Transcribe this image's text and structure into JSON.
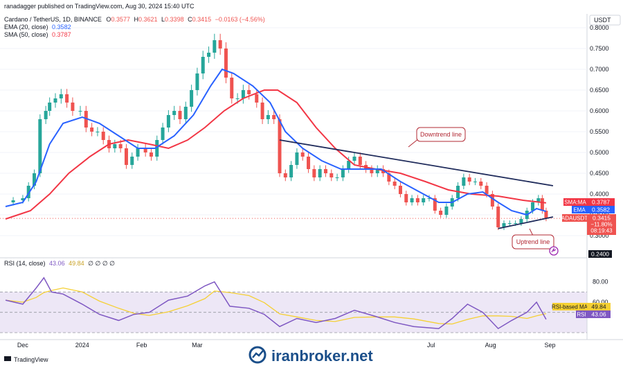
{
  "header": {
    "published_line": "ranadagger published on TradingView.com, Aug 30, 2024 15:40 UTC",
    "symbol_line_prefix": "Cardano / TetherUS, 1D, BINANCE",
    "ohlc": {
      "O": "0.3577",
      "H": "0.3621",
      "L": "0.3398",
      "C": "0.3415",
      "chg": "−0.0163 (−4.56%)"
    },
    "ema_line_label": "EMA (20, close)",
    "ema_line_value": "0.3582",
    "sma_line_label": "SMA (50, close)",
    "sma_line_value": "0.3787"
  },
  "currency": "USDT",
  "price_axis": {
    "ticks": [
      "0.8000",
      "0.7500",
      "0.7000",
      "0.6500",
      "0.6000",
      "0.5500",
      "0.5000",
      "0.4500",
      "0.4000",
      "0.3500",
      "0.3000"
    ],
    "bottom_tag": "0.2400"
  },
  "price_tags": {
    "sma": {
      "label": "SMA:MA",
      "value": "0.3787"
    },
    "ema": {
      "label": "EMA",
      "value": "0.3582"
    },
    "last": {
      "label": "ADAUSDT",
      "value": "0.3415",
      "change": "−11.80%",
      "countdown": "08:19:43"
    }
  },
  "annotations": {
    "downtrend": "Downtrend line",
    "uptrend": "Uptrend line"
  },
  "rsi": {
    "label": "RSI (14, close)",
    "value": "43.06",
    "ma_value": "49.84",
    "ma_tag_label": "RSI-based MA",
    "tag_label": "RSI",
    "extra": "∅ ∅ ∅ ∅",
    "ticks": [
      "80.00",
      "60.00"
    ]
  },
  "time_axis": [
    "Dec",
    "2024",
    "Feb",
    "Mar",
    "Jul",
    "Aug",
    "Sep"
  ],
  "footer": {
    "brand": "TradingView",
    "watermark": "iranbroker.net"
  },
  "colors": {
    "up": "#26a69a",
    "down": "#ef5350",
    "ema": "#2962ff",
    "sma": "#f23645",
    "trend": "#1e2a5a",
    "rsi": "#7e57c2",
    "rsi_ma": "#f5d033"
  },
  "chart_data": {
    "type": "candlestick",
    "symbol": "ADAUSDT",
    "interval": "1D",
    "ylim": [
      0.24,
      0.81
    ],
    "x_range": [
      "2023-11-22",
      "2024-09-03"
    ],
    "ohlc_series": [
      {
        "date": "2023-11-22",
        "close": 0.38
      },
      {
        "date": "2023-11-26",
        "close": 0.385
      },
      {
        "date": "2023-12-01",
        "close": 0.39
      },
      {
        "date": "2023-12-04",
        "close": 0.42
      },
      {
        "date": "2023-12-07",
        "close": 0.45
      },
      {
        "date": "2023-12-10",
        "close": 0.58
      },
      {
        "date": "2023-12-13",
        "close": 0.6
      },
      {
        "date": "2023-12-15",
        "close": 0.62
      },
      {
        "date": "2023-12-18",
        "close": 0.63
      },
      {
        "date": "2023-12-21",
        "close": 0.64
      },
      {
        "date": "2023-12-24",
        "close": 0.62
      },
      {
        "date": "2023-12-27",
        "close": 0.6
      },
      {
        "date": "2023-12-31",
        "close": 0.6
      },
      {
        "date": "2024-01-03",
        "close": 0.56
      },
      {
        "date": "2024-01-06",
        "close": 0.55
      },
      {
        "date": "2024-01-09",
        "close": 0.55
      },
      {
        "date": "2024-01-12",
        "close": 0.53
      },
      {
        "date": "2024-01-15",
        "close": 0.51
      },
      {
        "date": "2024-01-18",
        "close": 0.52
      },
      {
        "date": "2024-01-21",
        "close": 0.51
      },
      {
        "date": "2024-01-24",
        "close": 0.47
      },
      {
        "date": "2024-01-27",
        "close": 0.49
      },
      {
        "date": "2024-01-30",
        "close": 0.51
      },
      {
        "date": "2024-02-03",
        "close": 0.5
      },
      {
        "date": "2024-02-06",
        "close": 0.49
      },
      {
        "date": "2024-02-09",
        "close": 0.53
      },
      {
        "date": "2024-02-12",
        "close": 0.56
      },
      {
        "date": "2024-02-15",
        "close": 0.59
      },
      {
        "date": "2024-02-18",
        "close": 0.6
      },
      {
        "date": "2024-02-21",
        "close": 0.58
      },
      {
        "date": "2024-02-24",
        "close": 0.61
      },
      {
        "date": "2024-02-27",
        "close": 0.65
      },
      {
        "date": "2024-03-01",
        "close": 0.69
      },
      {
        "date": "2024-03-04",
        "close": 0.73
      },
      {
        "date": "2024-03-07",
        "close": 0.74
      },
      {
        "date": "2024-03-10",
        "close": 0.77
      },
      {
        "date": "2024-03-13",
        "close": 0.75
      },
      {
        "date": "2024-03-16",
        "close": 0.68
      },
      {
        "date": "2024-03-19",
        "close": 0.63
      },
      {
        "date": "2024-03-22",
        "close": 0.63
      },
      {
        "date": "2024-03-25",
        "close": 0.65
      },
      {
        "date": "2024-03-28",
        "close": 0.64
      },
      {
        "date": "2024-04-01",
        "close": 0.62
      },
      {
        "date": "2024-04-04",
        "close": 0.58
      },
      {
        "date": "2024-04-07",
        "close": 0.59
      },
      {
        "date": "2024-04-10",
        "close": 0.58
      },
      {
        "date": "2024-04-13",
        "close": 0.45
      },
      {
        "date": "2024-04-16",
        "close": 0.44
      },
      {
        "date": "2024-04-19",
        "close": 0.47
      },
      {
        "date": "2024-04-22",
        "close": 0.5
      },
      {
        "date": "2024-04-25",
        "close": 0.49
      },
      {
        "date": "2024-04-28",
        "close": 0.46
      },
      {
        "date": "2024-05-01",
        "close": 0.44
      },
      {
        "date": "2024-05-04",
        "close": 0.46
      },
      {
        "date": "2024-05-07",
        "close": 0.45
      },
      {
        "date": "2024-05-10",
        "close": 0.44
      },
      {
        "date": "2024-05-13",
        "close": 0.44
      },
      {
        "date": "2024-05-16",
        "close": 0.46
      },
      {
        "date": "2024-05-19",
        "close": 0.48
      },
      {
        "date": "2024-05-22",
        "close": 0.49
      },
      {
        "date": "2024-05-25",
        "close": 0.47
      },
      {
        "date": "2024-05-28",
        "close": 0.46
      },
      {
        "date": "2024-05-31",
        "close": 0.45
      },
      {
        "date": "2024-06-03",
        "close": 0.46
      },
      {
        "date": "2024-06-06",
        "close": 0.45
      },
      {
        "date": "2024-06-09",
        "close": 0.43
      },
      {
        "date": "2024-06-12",
        "close": 0.42
      },
      {
        "date": "2024-06-15",
        "close": 0.4
      },
      {
        "date": "2024-06-18",
        "close": 0.38
      },
      {
        "date": "2024-06-21",
        "close": 0.39
      },
      {
        "date": "2024-06-24",
        "close": 0.38
      },
      {
        "date": "2024-06-27",
        "close": 0.39
      },
      {
        "date": "2024-06-30",
        "close": 0.39
      },
      {
        "date": "2024-07-03",
        "close": 0.36
      },
      {
        "date": "2024-07-06",
        "close": 0.35
      },
      {
        "date": "2024-07-09",
        "close": 0.37
      },
      {
        "date": "2024-07-12",
        "close": 0.39
      },
      {
        "date": "2024-07-15",
        "close": 0.42
      },
      {
        "date": "2024-07-18",
        "close": 0.44
      },
      {
        "date": "2024-07-21",
        "close": 0.43
      },
      {
        "date": "2024-07-24",
        "close": 0.43
      },
      {
        "date": "2024-07-27",
        "close": 0.42
      },
      {
        "date": "2024-07-30",
        "close": 0.4
      },
      {
        "date": "2024-08-02",
        "close": 0.37
      },
      {
        "date": "2024-08-05",
        "close": 0.32
      },
      {
        "date": "2024-08-08",
        "close": 0.33
      },
      {
        "date": "2024-08-11",
        "close": 0.33
      },
      {
        "date": "2024-08-14",
        "close": 0.33
      },
      {
        "date": "2024-08-17",
        "close": 0.34
      },
      {
        "date": "2024-08-20",
        "close": 0.36
      },
      {
        "date": "2024-08-23",
        "close": 0.38
      },
      {
        "date": "2024-08-26",
        "close": 0.39
      },
      {
        "date": "2024-08-28",
        "close": 0.36
      },
      {
        "date": "2024-08-30",
        "close": 0.3415
      }
    ],
    "ema20": [
      {
        "date": "2023-11-22",
        "value": 0.37
      },
      {
        "date": "2023-12-01",
        "value": 0.38
      },
      {
        "date": "2023-12-08",
        "value": 0.43
      },
      {
        "date": "2023-12-15",
        "value": 0.52
      },
      {
        "date": "2023-12-22",
        "value": 0.57
      },
      {
        "date": "2024-01-01",
        "value": 0.585
      },
      {
        "date": "2024-01-10",
        "value": 0.57
      },
      {
        "date": "2024-01-20",
        "value": 0.54
      },
      {
        "date": "2024-01-30",
        "value": 0.51
      },
      {
        "date": "2024-02-08",
        "value": 0.51
      },
      {
        "date": "2024-02-18",
        "value": 0.54
      },
      {
        "date": "2024-02-28",
        "value": 0.59
      },
      {
        "date": "2024-03-08",
        "value": 0.66
      },
      {
        "date": "2024-03-14",
        "value": 0.7
      },
      {
        "date": "2024-03-20",
        "value": 0.69
      },
      {
        "date": "2024-03-30",
        "value": 0.66
      },
      {
        "date": "2024-04-08",
        "value": 0.62
      },
      {
        "date": "2024-04-16",
        "value": 0.55
      },
      {
        "date": "2024-04-25",
        "value": 0.51
      },
      {
        "date": "2024-05-05",
        "value": 0.48
      },
      {
        "date": "2024-05-15",
        "value": 0.46
      },
      {
        "date": "2024-05-25",
        "value": 0.46
      },
      {
        "date": "2024-06-05",
        "value": 0.46
      },
      {
        "date": "2024-06-15",
        "value": 0.43
      },
      {
        "date": "2024-06-25",
        "value": 0.405
      },
      {
        "date": "2024-07-05",
        "value": 0.38
      },
      {
        "date": "2024-07-12",
        "value": 0.38
      },
      {
        "date": "2024-07-20",
        "value": 0.4
      },
      {
        "date": "2024-07-28",
        "value": 0.405
      },
      {
        "date": "2024-08-05",
        "value": 0.38
      },
      {
        "date": "2024-08-12",
        "value": 0.36
      },
      {
        "date": "2024-08-20",
        "value": 0.35
      },
      {
        "date": "2024-08-25",
        "value": 0.365
      },
      {
        "date": "2024-08-30",
        "value": 0.3582
      }
    ],
    "sma50": [
      {
        "date": "2023-11-22",
        "value": 0.34
      },
      {
        "date": "2023-12-05",
        "value": 0.36
      },
      {
        "date": "2023-12-15",
        "value": 0.4
      },
      {
        "date": "2023-12-25",
        "value": 0.45
      },
      {
        "date": "2024-01-05",
        "value": 0.49
      },
      {
        "date": "2024-01-15",
        "value": 0.52
      },
      {
        "date": "2024-01-25",
        "value": 0.53
      },
      {
        "date": "2024-02-05",
        "value": 0.52
      },
      {
        "date": "2024-02-15",
        "value": 0.51
      },
      {
        "date": "2024-02-25",
        "value": 0.53
      },
      {
        "date": "2024-03-05",
        "value": 0.56
      },
      {
        "date": "2024-03-15",
        "value": 0.6
      },
      {
        "date": "2024-03-25",
        "value": 0.63
      },
      {
        "date": "2024-04-05",
        "value": 0.65
      },
      {
        "date": "2024-04-12",
        "value": 0.65
      },
      {
        "date": "2024-04-22",
        "value": 0.62
      },
      {
        "date": "2024-05-02",
        "value": 0.56
      },
      {
        "date": "2024-05-12",
        "value": 0.51
      },
      {
        "date": "2024-05-22",
        "value": 0.47
      },
      {
        "date": "2024-06-02",
        "value": 0.46
      },
      {
        "date": "2024-06-15",
        "value": 0.45
      },
      {
        "date": "2024-06-28",
        "value": 0.43
      },
      {
        "date": "2024-07-10",
        "value": 0.41
      },
      {
        "date": "2024-07-22",
        "value": 0.4
      },
      {
        "date": "2024-08-05",
        "value": 0.395
      },
      {
        "date": "2024-08-18",
        "value": 0.385
      },
      {
        "date": "2024-08-30",
        "value": 0.3787
      }
    ],
    "trendlines": [
      {
        "name": "Downtrend line",
        "from": {
          "date": "2024-04-13",
          "value": 0.53
        },
        "to": {
          "date": "2024-08-30",
          "value": 0.42
        }
      },
      {
        "name": "Uptrend line",
        "from": {
          "date": "2024-08-05",
          "value": 0.317
        },
        "to": {
          "date": "2024-08-30",
          "value": 0.345
        }
      }
    ],
    "rsi14": [
      {
        "date": "2023-11-22",
        "value": 62
      },
      {
        "date": "2023-12-01",
        "value": 58
      },
      {
        "date": "2023-12-08",
        "value": 74
      },
      {
        "date": "2023-12-12",
        "value": 84
      },
      {
        "date": "2023-12-16",
        "value": 70
      },
      {
        "date": "2023-12-22",
        "value": 68
      },
      {
        "date": "2024-01-01",
        "value": 58
      },
      {
        "date": "2024-01-10",
        "value": 48
      },
      {
        "date": "2024-01-20",
        "value": 42
      },
      {
        "date": "2024-01-28",
        "value": 48
      },
      {
        "date": "2024-02-05",
        "value": 50
      },
      {
        "date": "2024-02-15",
        "value": 62
      },
      {
        "date": "2024-02-25",
        "value": 66
      },
      {
        "date": "2024-03-05",
        "value": 76
      },
      {
        "date": "2024-03-10",
        "value": 80
      },
      {
        "date": "2024-03-18",
        "value": 56
      },
      {
        "date": "2024-03-28",
        "value": 54
      },
      {
        "date": "2024-04-05",
        "value": 48
      },
      {
        "date": "2024-04-13",
        "value": 36
      },
      {
        "date": "2024-04-22",
        "value": 44
      },
      {
        "date": "2024-05-02",
        "value": 40
      },
      {
        "date": "2024-05-12",
        "value": 44
      },
      {
        "date": "2024-05-22",
        "value": 52
      },
      {
        "date": "2024-06-02",
        "value": 46
      },
      {
        "date": "2024-06-12",
        "value": 40
      },
      {
        "date": "2024-06-22",
        "value": 36
      },
      {
        "date": "2024-07-05",
        "value": 34
      },
      {
        "date": "2024-07-12",
        "value": 44
      },
      {
        "date": "2024-07-20",
        "value": 58
      },
      {
        "date": "2024-07-28",
        "value": 50
      },
      {
        "date": "2024-08-05",
        "value": 34
      },
      {
        "date": "2024-08-12",
        "value": 42
      },
      {
        "date": "2024-08-20",
        "value": 50
      },
      {
        "date": "2024-08-25",
        "value": 60
      },
      {
        "date": "2024-08-30",
        "value": 43.06
      }
    ],
    "rsi_ylim": [
      30,
      90
    ],
    "rsi_levels": [
      70,
      50,
      30
    ]
  }
}
